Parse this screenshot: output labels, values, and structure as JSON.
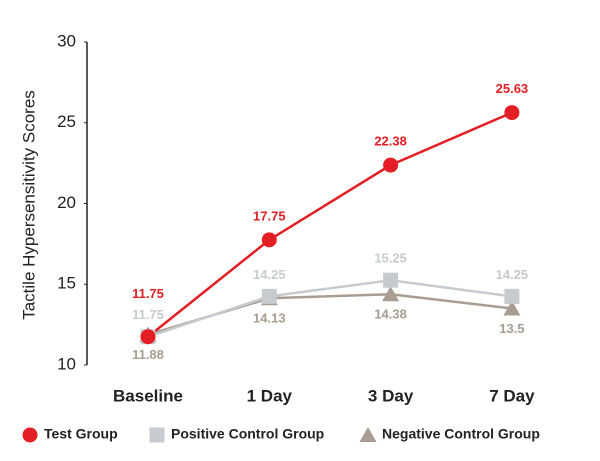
{
  "chart_data": {
    "type": "line",
    "y_label": "Tactile Hypersensitivity Scores",
    "categories": [
      "Baseline",
      "1 Day",
      "3 Day",
      "7 Day"
    ],
    "series": [
      {
        "name": "Test Group",
        "color": "#e31e24",
        "marker": "circle",
        "values": [
          11.75,
          17.75,
          22.38,
          25.63
        ]
      },
      {
        "name": "Positive Control Group",
        "color": "#c5cbce",
        "marker": "square",
        "values": [
          11.75,
          14.25,
          15.25,
          14.25
        ]
      },
      {
        "name": "Negative Control Group",
        "color": "#a99d91",
        "marker": "triangle",
        "values": [
          11.88,
          14.13,
          14.38,
          13.5
        ]
      }
    ],
    "ylim": [
      10,
      30
    ],
    "yticks": [
      10,
      15,
      20,
      25,
      30
    ],
    "grid": false,
    "legend": "bottom"
  }
}
